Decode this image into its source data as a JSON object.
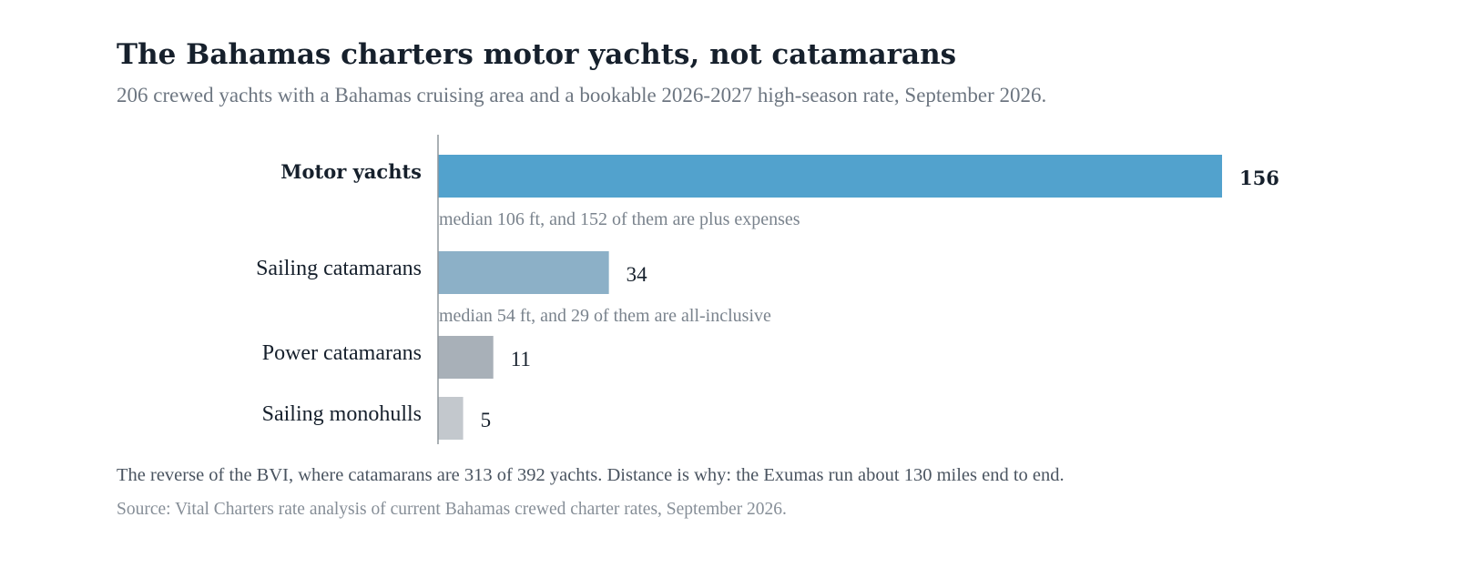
{
  "chart_data": {
    "type": "bar",
    "orientation": "horizontal",
    "title": "The Bahamas charters motor yachts, not catamarans",
    "subtitle": "206 crewed yachts with a Bahamas cruising area and a bookable 2026-2027 high-season rate, September 2026.",
    "categories": [
      "Motor yachts",
      "Sailing catamarans",
      "Power catamarans",
      "Sailing monohulls"
    ],
    "values": [
      156,
      34,
      11,
      5
    ],
    "value_labels": [
      "156",
      "34",
      "11",
      "5"
    ],
    "annotations": [
      "median 106 ft, and 152 of them are plus expenses",
      "median 54 ft, and 29 of them are all-inclusive",
      "",
      ""
    ],
    "highlight": "Motor yachts",
    "bar_colors": [
      "#52a2cd",
      "#8cb0c7",
      "#a8b0b8",
      "#c3c8cd"
    ],
    "xlim": [
      0,
      156
    ],
    "grid": false,
    "legend": "none",
    "xlabel": "",
    "ylabel": ""
  },
  "footnote": "The reverse of the BVI, where catamarans are 313 of 392 yachts. Distance is why: the Exumas run about 130 miles end to end.",
  "source": "Source: Vital Charters rate analysis of current Bahamas crewed charter rates, September 2026."
}
